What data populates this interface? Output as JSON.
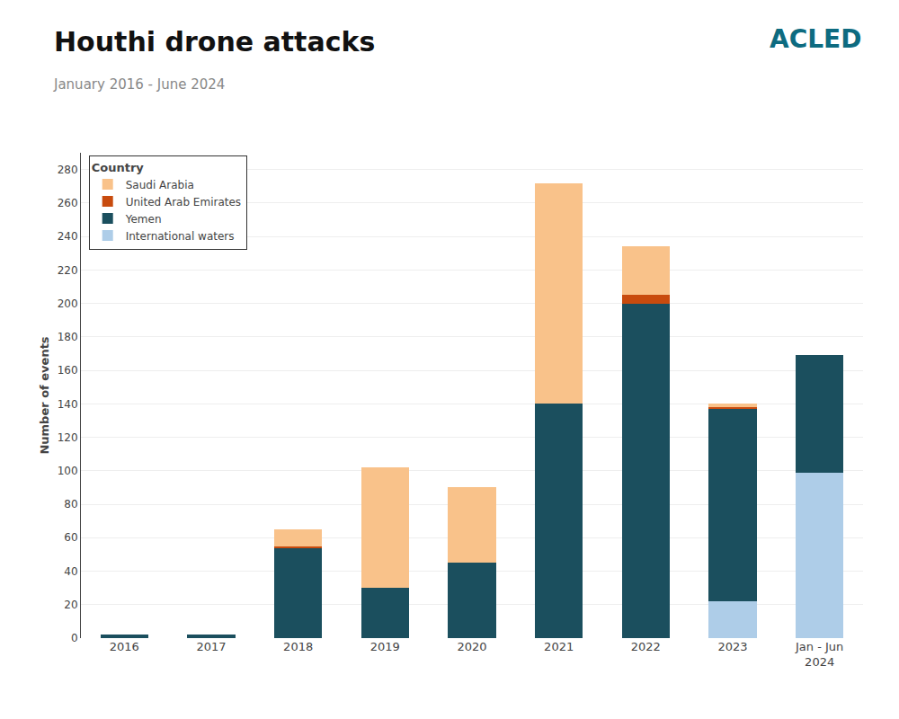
{
  "chart_data": {
    "type": "bar",
    "stacked": true,
    "title": "Houthi drone attacks",
    "subtitle": "January 2016 - June 2024",
    "ylabel": "Number of events",
    "categories": [
      "2016",
      "2017",
      "2018",
      "2019",
      "2020",
      "2021",
      "2022",
      "2023",
      "Jan - Jun\n2024"
    ],
    "series": [
      {
        "name": "International waters",
        "color": "#aecde8",
        "values": [
          0,
          0,
          0,
          0,
          0,
          0,
          0,
          22,
          99
        ]
      },
      {
        "name": "Yemen",
        "color": "#1b4f5e",
        "values": [
          2,
          2,
          54,
          30,
          45,
          140,
          200,
          115,
          70
        ]
      },
      {
        "name": "United Arab Emirates",
        "color": "#c84b0e",
        "values": [
          0,
          0,
          1,
          0,
          0,
          0,
          5,
          1,
          0
        ]
      },
      {
        "name": "Saudi Arabia",
        "color": "#f9c28a",
        "values": [
          0,
          0,
          10,
          72,
          45,
          132,
          29,
          2,
          0
        ]
      }
    ],
    "ylim": [
      0,
      290
    ],
    "yticks": [
      0,
      20,
      40,
      60,
      80,
      100,
      120,
      140,
      160,
      180,
      200,
      220,
      240,
      260,
      280
    ],
    "grid": true,
    "legend": "upper left",
    "legend_title": "Country",
    "annotations": [
      {
        "text": "ACLED",
        "color": "#0d6b80"
      }
    ]
  }
}
